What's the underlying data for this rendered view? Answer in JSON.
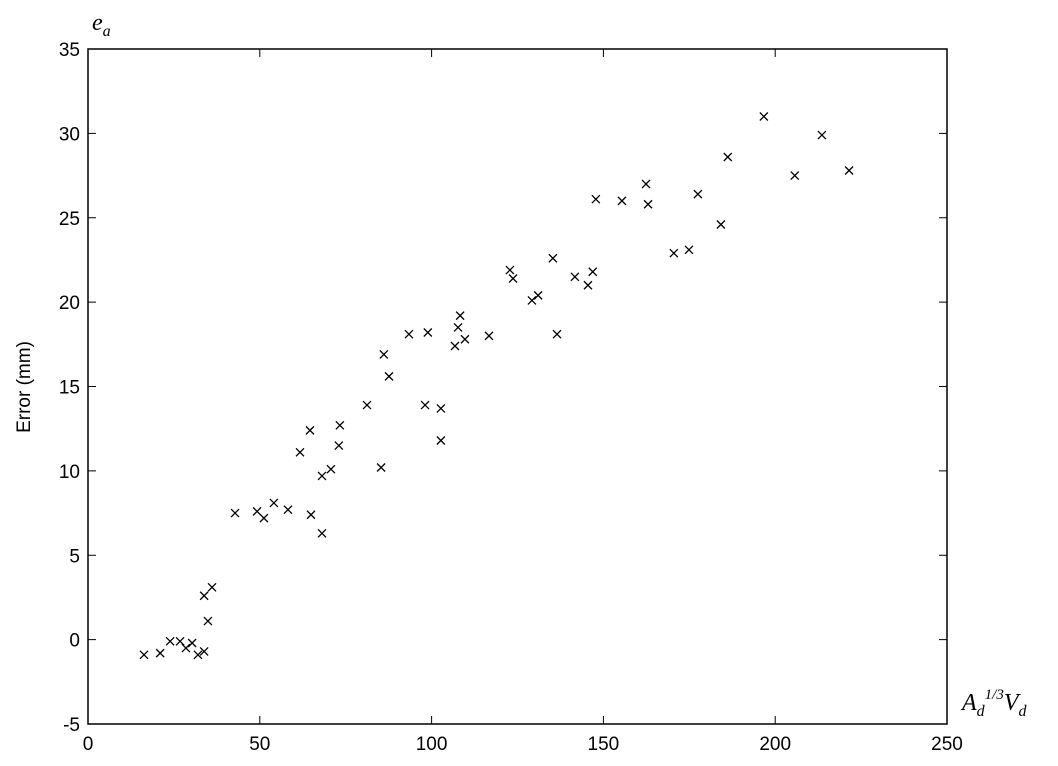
{
  "chart_data": {
    "type": "scatter",
    "y_label": "Error (mm)",
    "y_annotation": {
      "base": "e",
      "sub": "a"
    },
    "x_annotation": {
      "base1": "A",
      "sub1": "d",
      "sup": "1/3",
      "base2": "V",
      "sub2": "d"
    },
    "xlim": [
      0,
      250
    ],
    "xticks": [
      0,
      50,
      100,
      150,
      200,
      250
    ],
    "ylim": [
      -5,
      35
    ],
    "yticks": [
      -5,
      0,
      5,
      10,
      15,
      20,
      25,
      30,
      35
    ],
    "color": "#000000",
    "x": [
      16.3,
      21,
      23.9,
      26.8,
      28.5,
      30.3,
      32,
      33.8,
      33.8,
      36.1,
      34.9,
      42.8,
      49.2,
      51.2,
      54.1,
      58.2,
      61.7,
      64.6,
      64.9,
      68.1,
      68.1,
      70.7,
      73.3,
      73,
      81.2,
      85.3,
      86.1,
      87.6,
      93.4,
      98.1,
      98.9,
      102.7,
      102.7,
      106.8,
      108.3,
      107.7,
      109.7,
      116.7,
      122.8,
      123.7,
      129.2,
      131,
      135.3,
      136.5,
      141.7,
      145.5,
      146.9,
      147.8,
      155.4,
      162.4,
      163,
      170.5,
      174.9,
      177.5,
      184.2,
      186.2,
      196.7,
      205.7,
      213.6,
      221.5
    ],
    "values": [
      -0.9,
      -0.8,
      -0.1,
      -0.1,
      -0.5,
      -0.2,
      -0.9,
      -0.7,
      2.6,
      3.1,
      1.1,
      7.5,
      7.6,
      7.2,
      8.1,
      7.7,
      11.1,
      12.4,
      7.4,
      9.7,
      6.3,
      10.1,
      12.7,
      11.5,
      13.9,
      10.2,
      16.9,
      15.6,
      18.1,
      13.9,
      18.2,
      13.7,
      11.8,
      17.4,
      19.2,
      18.5,
      17.8,
      18,
      21.9,
      21.4,
      20.1,
      20.4,
      22.6,
      18.1,
      21.5,
      21,
      21.8,
      26.1,
      26,
      27,
      25.8,
      22.9,
      23.1,
      26.4,
      24.6,
      28.6,
      31,
      27.5,
      29.9,
      27.8
    ]
  }
}
